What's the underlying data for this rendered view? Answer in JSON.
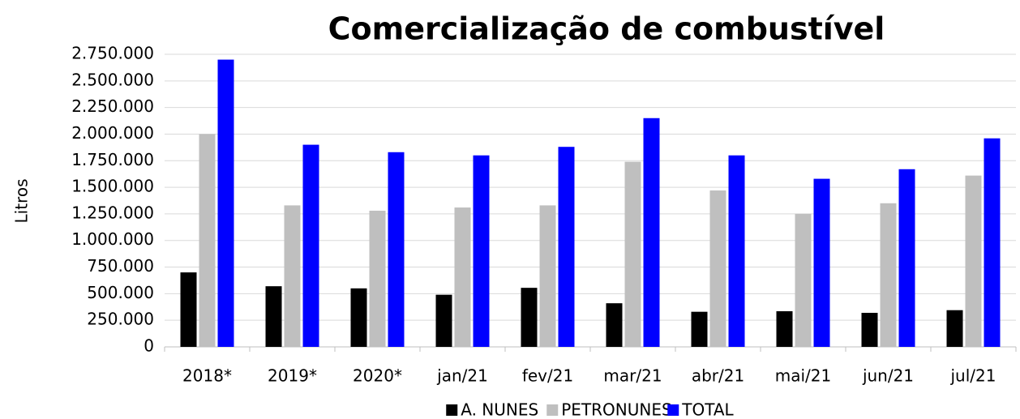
{
  "chart_data": {
    "type": "bar",
    "title": "Comercialização de combustível",
    "y_label": "Litros",
    "categories": [
      "2018*",
      "2019*",
      "2020*",
      "jan/21",
      "fev/21",
      "mar/21",
      "abr/21",
      "mai/21",
      "jun/21",
      "jul/21"
    ],
    "series": [
      {
        "name": "A. NUNES",
        "color": "#000000",
        "values": [
          700000,
          570000,
          550000,
          490000,
          555000,
          410000,
          330000,
          335000,
          320000,
          345000
        ]
      },
      {
        "name": "PETRONUNES",
        "color": "#bfbfbf",
        "values": [
          2000000,
          1330000,
          1280000,
          1310000,
          1330000,
          1740000,
          1470000,
          1250000,
          1350000,
          1610000
        ]
      },
      {
        "name": "TOTAL",
        "color": "#0000ff",
        "values": [
          2700000,
          1900000,
          1830000,
          1800000,
          1880000,
          2150000,
          1800000,
          1580000,
          1670000,
          1960000
        ]
      }
    ],
    "ylim": [
      0,
      2750000
    ],
    "yticks": [
      0,
      {
        "value": 250000,
        "label": "250.000"
      },
      {
        "value": 500000,
        "label": "500.000"
      },
      {
        "value": 750000,
        "label": "750.000"
      },
      {
        "value": 1000000,
        "label": "1.000.000"
      },
      {
        "value": 1250000,
        "label": "1.250.000"
      },
      {
        "value": 1500000,
        "label": "1.500.000"
      },
      {
        "value": 1750000,
        "label": "1.750.000"
      },
      {
        "value": 2000000,
        "label": "2.000.000"
      },
      {
        "value": 2250000,
        "label": "2.250.000"
      },
      {
        "value": 2500000,
        "label": "2.500.000"
      },
      {
        "value": 2750000,
        "label": "2.750.000"
      }
    ],
    "grid": true,
    "legend": "bottom"
  }
}
